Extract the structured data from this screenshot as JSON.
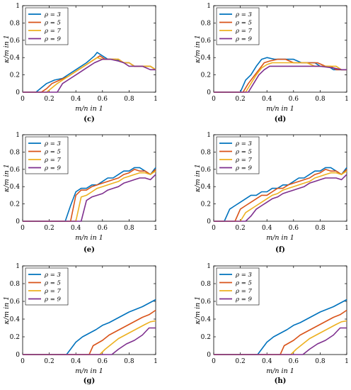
{
  "colors": [
    "#0072BD",
    "#D95319",
    "#EDB120",
    "#7E2F8E"
  ],
  "legend": [
    "ρ = 3",
    "ρ = 5",
    "ρ = 7",
    "ρ = 9"
  ],
  "chart_data": [
    {
      "type": "line",
      "caption": "(c)",
      "xlabel": "m/n in 1",
      "ylabel": "κ/m in 1",
      "xlim": [
        0,
        1
      ],
      "ylim": [
        0,
        1
      ],
      "xticks": [
        "0",
        "0.2",
        "0.4",
        "0.6",
        "0.8",
        "1"
      ],
      "yticks": [
        "0",
        "0.2",
        "0.4",
        "0.6",
        "0.8",
        "1"
      ],
      "legend_position": "top-left",
      "series": [
        {
          "name": "ρ = 3",
          "x": [
            0,
            0.1,
            0.14,
            0.18,
            0.24,
            0.3,
            0.36,
            0.42,
            0.48,
            0.54,
            0.56,
            0.6,
            0.64,
            0.7,
            0.76,
            0.8,
            0.84,
            0.9,
            0.96,
            1
          ],
          "y": [
            0,
            0,
            0.05,
            0.1,
            0.14,
            0.16,
            0.22,
            0.28,
            0.34,
            0.42,
            0.46,
            0.42,
            0.38,
            0.38,
            0.34,
            0.34,
            0.3,
            0.3,
            0.3,
            0.26
          ]
        },
        {
          "name": "ρ = 5",
          "x": [
            0,
            0.14,
            0.18,
            0.22,
            0.28,
            0.34,
            0.4,
            0.46,
            0.52,
            0.58,
            0.62,
            0.66,
            0.72,
            0.76,
            0.8,
            0.84,
            0.9,
            0.96,
            1
          ],
          "y": [
            0,
            0,
            0.04,
            0.1,
            0.14,
            0.18,
            0.24,
            0.3,
            0.36,
            0.42,
            0.38,
            0.38,
            0.38,
            0.34,
            0.34,
            0.3,
            0.3,
            0.3,
            0.26
          ]
        },
        {
          "name": "ρ = 7",
          "x": [
            0,
            0.18,
            0.22,
            0.26,
            0.32,
            0.38,
            0.44,
            0.5,
            0.56,
            0.6,
            0.66,
            0.72,
            0.76,
            0.8,
            0.84,
            0.9,
            0.96,
            1
          ],
          "y": [
            0,
            0,
            0.05,
            0.1,
            0.16,
            0.22,
            0.28,
            0.34,
            0.4,
            0.38,
            0.38,
            0.38,
            0.34,
            0.34,
            0.3,
            0.3,
            0.3,
            0.26
          ]
        },
        {
          "name": "ρ = 9",
          "x": [
            0,
            0.26,
            0.3,
            0.36,
            0.42,
            0.48,
            0.54,
            0.6,
            0.66,
            0.72,
            0.76,
            0.8,
            0.84,
            0.9,
            0.96,
            1
          ],
          "y": [
            0,
            0,
            0.1,
            0.16,
            0.22,
            0.28,
            0.34,
            0.38,
            0.38,
            0.36,
            0.34,
            0.3,
            0.3,
            0.3,
            0.26,
            0.26
          ]
        }
      ]
    },
    {
      "type": "line",
      "caption": "(d)",
      "xlabel": "m/n in 1",
      "ylabel": "κ/m in 1",
      "xlim": [
        0,
        1
      ],
      "ylim": [
        0,
        1
      ],
      "xticks": [
        "0",
        "0.2",
        "0.4",
        "0.6",
        "0.8",
        "1"
      ],
      "yticks": [
        "0",
        "0.2",
        "0.4",
        "0.6",
        "0.8",
        "1"
      ],
      "legend_position": "top-left",
      "series": [
        {
          "name": "ρ = 3",
          "x": [
            0,
            0.2,
            0.24,
            0.28,
            0.32,
            0.36,
            0.4,
            0.46,
            0.5,
            0.56,
            0.6,
            0.66,
            0.7,
            0.76,
            0.8,
            0.86,
            0.9,
            0.96,
            1
          ],
          "y": [
            0,
            0,
            0.14,
            0.2,
            0.3,
            0.38,
            0.4,
            0.38,
            0.38,
            0.38,
            0.38,
            0.34,
            0.34,
            0.34,
            0.3,
            0.3,
            0.26,
            0.26,
            0.26
          ]
        },
        {
          "name": "ρ = 5",
          "x": [
            0,
            0.22,
            0.26,
            0.3,
            0.34,
            0.38,
            0.42,
            0.48,
            0.54,
            0.6,
            0.66,
            0.72,
            0.78,
            0.84,
            0.88,
            0.92,
            1
          ],
          "y": [
            0,
            0,
            0.1,
            0.18,
            0.26,
            0.34,
            0.36,
            0.38,
            0.38,
            0.34,
            0.34,
            0.34,
            0.34,
            0.3,
            0.3,
            0.26,
            0.26
          ]
        },
        {
          "name": "ρ = 7",
          "x": [
            0,
            0.24,
            0.28,
            0.32,
            0.36,
            0.4,
            0.44,
            0.5,
            0.56,
            0.62,
            0.7,
            0.76,
            0.82,
            0.88,
            0.92,
            0.96,
            1
          ],
          "y": [
            0,
            0,
            0.1,
            0.2,
            0.28,
            0.32,
            0.34,
            0.34,
            0.34,
            0.34,
            0.34,
            0.3,
            0.3,
            0.3,
            0.3,
            0.26,
            0.26
          ]
        },
        {
          "name": "ρ = 9",
          "x": [
            0,
            0.26,
            0.3,
            0.34,
            0.38,
            0.42,
            0.5,
            0.6,
            0.7,
            0.8,
            0.9,
            0.96,
            1
          ],
          "y": [
            0,
            0,
            0.1,
            0.2,
            0.26,
            0.3,
            0.3,
            0.3,
            0.3,
            0.3,
            0.28,
            0.26,
            0.26
          ]
        }
      ]
    },
    {
      "type": "line",
      "caption": "(e)",
      "xlabel": "m/n in 1",
      "ylabel": "κ/m in 1",
      "xlim": [
        0,
        1
      ],
      "ylim": [
        0,
        1
      ],
      "xticks": [
        "0",
        "0.2",
        "0.4",
        "0.6",
        "0.8",
        "1"
      ],
      "yticks": [
        "0",
        "0.2",
        "0.4",
        "0.6",
        "0.8",
        "1"
      ],
      "legend_position": "top-left",
      "series": [
        {
          "name": "ρ = 3",
          "x": [
            0,
            0.32,
            0.36,
            0.4,
            0.44,
            0.48,
            0.52,
            0.56,
            0.6,
            0.64,
            0.68,
            0.72,
            0.76,
            0.8,
            0.84,
            0.88,
            0.92,
            0.96,
            1
          ],
          "y": [
            0,
            0,
            0.18,
            0.34,
            0.38,
            0.38,
            0.42,
            0.42,
            0.46,
            0.5,
            0.5,
            0.54,
            0.58,
            0.58,
            0.62,
            0.62,
            0.58,
            0.54,
            0.62
          ]
        },
        {
          "name": "ρ = 5",
          "x": [
            0,
            0.36,
            0.4,
            0.44,
            0.48,
            0.52,
            0.56,
            0.6,
            0.64,
            0.68,
            0.72,
            0.76,
            0.8,
            0.84,
            0.88,
            0.92,
            0.96,
            1
          ],
          "y": [
            0,
            0,
            0.3,
            0.36,
            0.36,
            0.4,
            0.42,
            0.44,
            0.46,
            0.48,
            0.5,
            0.54,
            0.56,
            0.6,
            0.58,
            0.58,
            0.54,
            0.6
          ]
        },
        {
          "name": "ρ = 7",
          "x": [
            0,
            0.4,
            0.44,
            0.48,
            0.52,
            0.56,
            0.6,
            0.64,
            0.68,
            0.72,
            0.76,
            0.8,
            0.84,
            0.88,
            0.92,
            0.96,
            1
          ],
          "y": [
            0,
            0,
            0.28,
            0.3,
            0.34,
            0.38,
            0.4,
            0.42,
            0.44,
            0.46,
            0.5,
            0.52,
            0.54,
            0.56,
            0.56,
            0.54,
            0.58
          ]
        },
        {
          "name": "ρ = 9",
          "x": [
            0,
            0.44,
            0.48,
            0.52,
            0.56,
            0.6,
            0.64,
            0.68,
            0.72,
            0.76,
            0.8,
            0.84,
            0.88,
            0.92,
            0.96,
            1
          ],
          "y": [
            0,
            0,
            0.24,
            0.28,
            0.3,
            0.32,
            0.36,
            0.38,
            0.4,
            0.44,
            0.46,
            0.48,
            0.5,
            0.5,
            0.48,
            0.54
          ]
        }
      ]
    },
    {
      "type": "line",
      "caption": "(f)",
      "xlabel": "m/n in 1",
      "ylabel": "κ/m in 1",
      "xlim": [
        0,
        1
      ],
      "ylim": [
        0,
        1
      ],
      "xticks": [
        "0",
        "0.2",
        "0.4",
        "0.6",
        "0.8",
        "1"
      ],
      "yticks": [
        "0",
        "0.2",
        "0.4",
        "0.6",
        "0.8",
        "1"
      ],
      "legend_position": "top-left",
      "series": [
        {
          "name": "ρ = 3",
          "x": [
            0,
            0.08,
            0.12,
            0.16,
            0.2,
            0.24,
            0.28,
            0.32,
            0.36,
            0.4,
            0.44,
            0.48,
            0.52,
            0.56,
            0.6,
            0.64,
            0.68,
            0.72,
            0.76,
            0.8,
            0.84,
            0.88,
            0.92,
            0.96,
            1
          ],
          "y": [
            0,
            0,
            0.14,
            0.18,
            0.22,
            0.26,
            0.3,
            0.3,
            0.34,
            0.34,
            0.38,
            0.38,
            0.42,
            0.42,
            0.46,
            0.5,
            0.5,
            0.54,
            0.58,
            0.58,
            0.62,
            0.62,
            0.58,
            0.54,
            0.62
          ]
        },
        {
          "name": "ρ = 5",
          "x": [
            0,
            0.16,
            0.2,
            0.24,
            0.28,
            0.32,
            0.36,
            0.4,
            0.44,
            0.48,
            0.52,
            0.56,
            0.6,
            0.64,
            0.68,
            0.72,
            0.76,
            0.8,
            0.84,
            0.88,
            0.92,
            0.96,
            1
          ],
          "y": [
            0,
            0,
            0.14,
            0.18,
            0.22,
            0.26,
            0.3,
            0.3,
            0.34,
            0.38,
            0.38,
            0.42,
            0.44,
            0.46,
            0.48,
            0.5,
            0.54,
            0.56,
            0.6,
            0.58,
            0.58,
            0.54,
            0.6
          ]
        },
        {
          "name": "ρ = 7",
          "x": [
            0,
            0.2,
            0.24,
            0.28,
            0.32,
            0.36,
            0.4,
            0.44,
            0.48,
            0.52,
            0.56,
            0.6,
            0.64,
            0.68,
            0.72,
            0.76,
            0.8,
            0.84,
            0.88,
            0.92,
            0.96,
            1
          ],
          "y": [
            0,
            0,
            0.1,
            0.14,
            0.18,
            0.22,
            0.26,
            0.3,
            0.32,
            0.36,
            0.38,
            0.4,
            0.42,
            0.44,
            0.46,
            0.5,
            0.52,
            0.54,
            0.56,
            0.56,
            0.54,
            0.58
          ]
        },
        {
          "name": "ρ = 9",
          "x": [
            0,
            0.24,
            0.28,
            0.32,
            0.36,
            0.4,
            0.44,
            0.48,
            0.52,
            0.56,
            0.6,
            0.64,
            0.68,
            0.72,
            0.76,
            0.8,
            0.84,
            0.88,
            0.92,
            0.96,
            1
          ],
          "y": [
            0,
            0,
            0.06,
            0.14,
            0.18,
            0.22,
            0.26,
            0.28,
            0.32,
            0.34,
            0.36,
            0.38,
            0.4,
            0.44,
            0.46,
            0.48,
            0.5,
            0.5,
            0.5,
            0.48,
            0.54
          ]
        }
      ]
    },
    {
      "type": "line",
      "caption": "(g)",
      "xlabel": "m/n in 1",
      "ylabel": "κ/m in 1",
      "xlim": [
        0,
        1
      ],
      "ylim": [
        0,
        1
      ],
      "xticks": [
        "0",
        "0.2",
        "0.4",
        "0.6",
        "0.8",
        "1"
      ],
      "yticks": [
        "0",
        "0.2",
        "0.4",
        "0.6",
        "0.8",
        "1"
      ],
      "legend_position": "top-left",
      "series": [
        {
          "name": "ρ = 3",
          "x": [
            0,
            0.33,
            0.36,
            0.4,
            0.45,
            0.5,
            0.55,
            0.6,
            0.65,
            0.7,
            0.75,
            0.8,
            0.85,
            0.9,
            0.95,
            1
          ],
          "y": [
            0,
            0,
            0.06,
            0.14,
            0.2,
            0.24,
            0.28,
            0.33,
            0.36,
            0.4,
            0.44,
            0.48,
            0.51,
            0.54,
            0.58,
            0.62
          ]
        },
        {
          "name": "ρ = 5",
          "x": [
            0,
            0.5,
            0.53,
            0.6,
            0.65,
            0.7,
            0.75,
            0.8,
            0.85,
            0.9,
            0.95,
            1
          ],
          "y": [
            0,
            0,
            0.1,
            0.16,
            0.22,
            0.26,
            0.3,
            0.34,
            0.38,
            0.42,
            0.45,
            0.5
          ]
        },
        {
          "name": "ρ = 7",
          "x": [
            0,
            0.58,
            0.62,
            0.67,
            0.72,
            0.77,
            0.82,
            0.87,
            0.92,
            0.96,
            1
          ],
          "y": [
            0,
            0,
            0.06,
            0.12,
            0.18,
            0.22,
            0.26,
            0.3,
            0.34,
            0.37,
            0.38
          ]
        },
        {
          "name": "ρ = 9",
          "x": [
            0,
            0.67,
            0.72,
            0.78,
            0.84,
            0.9,
            0.95,
            1
          ],
          "y": [
            0,
            0,
            0.06,
            0.12,
            0.16,
            0.22,
            0.3,
            0.3
          ]
        }
      ]
    },
    {
      "type": "line",
      "caption": "(h)",
      "xlabel": "m/n in 1",
      "ylabel": "κ/m in 1",
      "xlim": [
        0,
        1
      ],
      "ylim": [
        0,
        1
      ],
      "xticks": [
        "0",
        "0.2",
        "0.4",
        "0.6",
        "0.8",
        "1"
      ],
      "yticks": [
        "0",
        "0.2",
        "0.4",
        "0.6",
        "0.8",
        "1"
      ],
      "legend_position": "top-left",
      "series": [
        {
          "name": "ρ = 3",
          "x": [
            0,
            0.33,
            0.36,
            0.4,
            0.45,
            0.5,
            0.55,
            0.6,
            0.65,
            0.7,
            0.75,
            0.8,
            0.85,
            0.9,
            0.95,
            1
          ],
          "y": [
            0,
            0,
            0.06,
            0.14,
            0.2,
            0.24,
            0.28,
            0.33,
            0.36,
            0.4,
            0.44,
            0.48,
            0.51,
            0.54,
            0.58,
            0.62
          ]
        },
        {
          "name": "ρ = 5",
          "x": [
            0,
            0.5,
            0.53,
            0.6,
            0.65,
            0.7,
            0.75,
            0.8,
            0.85,
            0.9,
            0.95,
            1
          ],
          "y": [
            0,
            0,
            0.1,
            0.16,
            0.22,
            0.26,
            0.3,
            0.34,
            0.38,
            0.42,
            0.45,
            0.5
          ]
        },
        {
          "name": "ρ = 7",
          "x": [
            0,
            0.58,
            0.62,
            0.67,
            0.72,
            0.77,
            0.82,
            0.87,
            0.92,
            0.96,
            1
          ],
          "y": [
            0,
            0,
            0.06,
            0.12,
            0.18,
            0.22,
            0.26,
            0.3,
            0.34,
            0.37,
            0.38
          ]
        },
        {
          "name": "ρ = 9",
          "x": [
            0,
            0.67,
            0.72,
            0.78,
            0.84,
            0.9,
            0.95,
            1
          ],
          "y": [
            0,
            0,
            0.06,
            0.12,
            0.16,
            0.22,
            0.3,
            0.3
          ]
        }
      ]
    }
  ]
}
